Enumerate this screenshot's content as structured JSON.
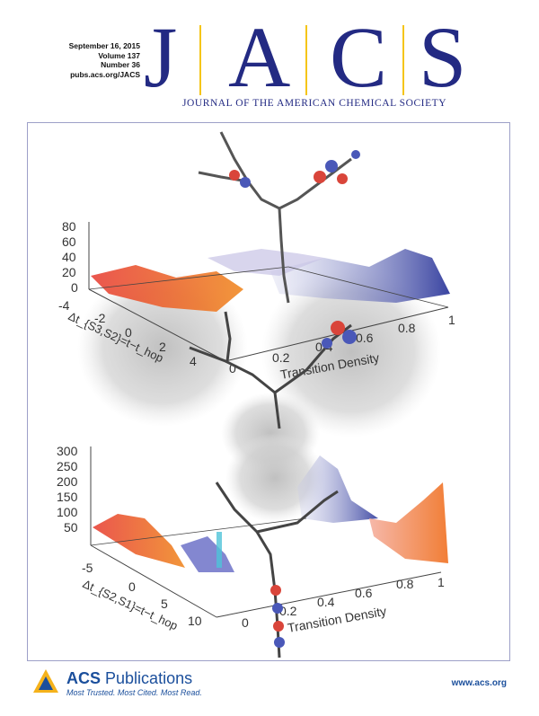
{
  "issue": {
    "date": "September 16, 2015",
    "volume": "Volume 137",
    "number": "Number 36",
    "url": "pubs.acs.org/JACS"
  },
  "journal": {
    "letters": [
      "J",
      "A",
      "C",
      "S"
    ],
    "full_name": "JOURNAL OF THE AMERICAN CHEMICAL SOCIETY",
    "brand_color": "#232a83",
    "bar_color": "#f5c518"
  },
  "cover_art": {
    "top_plot": {
      "z_ticks": [
        "80",
        "60",
        "40",
        "20",
        "0"
      ],
      "y_ticks": [
        "-4",
        "-2",
        "0",
        "2",
        "4"
      ],
      "x_ticks": [
        "0",
        "0.2",
        "0.4",
        "0.6",
        "0.8",
        "1"
      ],
      "y_label": "Δt_{S3,S2}=t−t_hop",
      "x_label": "Transition Density"
    },
    "bottom_plot": {
      "z_ticks": [
        "300",
        "250",
        "200",
        "150",
        "100",
        "50"
      ],
      "y_ticks": [
        "-5",
        "0",
        "5",
        "10"
      ],
      "x_ticks": [
        "0",
        "0.2",
        "0.4",
        "0.6",
        "0.8",
        "1"
      ],
      "y_label": "Δt_{S2,S1}=t−t_hop",
      "x_label": "Transition Density"
    }
  },
  "footer": {
    "publisher_a": "ACS",
    "publisher_b": "Publications",
    "tagline": "Most Trusted. Most Cited. Most Read.",
    "website": "www.acs.org"
  }
}
